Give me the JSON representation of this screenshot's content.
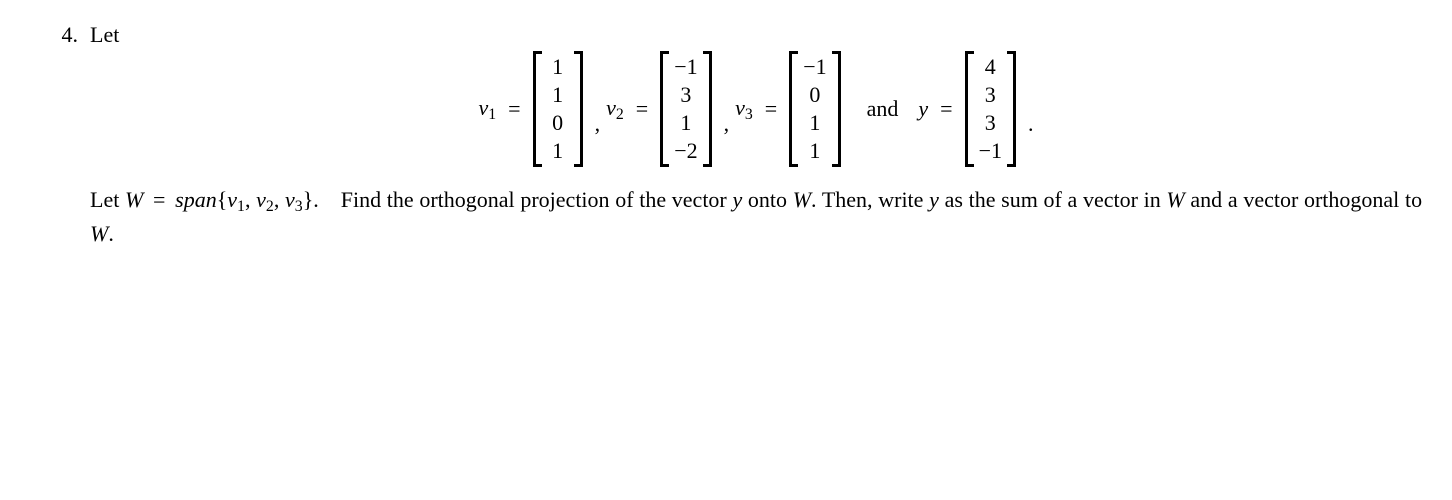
{
  "problem": {
    "number": "4.",
    "intro": "Let",
    "vectors": {
      "v1": {
        "label": "v",
        "sub": "1",
        "entries": [
          "1",
          "1",
          "0",
          "1"
        ]
      },
      "v2": {
        "label": "v",
        "sub": "2",
        "entries": [
          "−1",
          "3",
          "1",
          "−2"
        ]
      },
      "v3": {
        "label": "v",
        "sub": "3",
        "entries": [
          "−1",
          "0",
          "1",
          "1"
        ]
      },
      "y": {
        "label": "y",
        "entries": [
          "4",
          "3",
          "3",
          "−1"
        ]
      }
    },
    "eq_sign": "=",
    "comma": ",",
    "and": "and",
    "period": ".",
    "text": {
      "let_w_eq": "Let",
      "W": "W",
      "span": "span",
      "span_set_open": "{",
      "span_set_close": "}",
      "v1s": "v",
      "v1sub": "1",
      "v2s": "v",
      "v2sub": "2",
      "v3s": "v",
      "v3sub": "3",
      "sentence_mid1": ". Find the orthogonal projection of the vector",
      "y_var": "y",
      "onto": "onto",
      "W2": "W",
      "sentence_end1": ".",
      "sentence2a": "Then, write",
      "y_var2": "y",
      "sentence2b": "as the sum of a vector in",
      "W3": "W",
      "sentence2c": "and a vector orthogonal to",
      "W4": "W",
      "sentence2end": "."
    }
  }
}
